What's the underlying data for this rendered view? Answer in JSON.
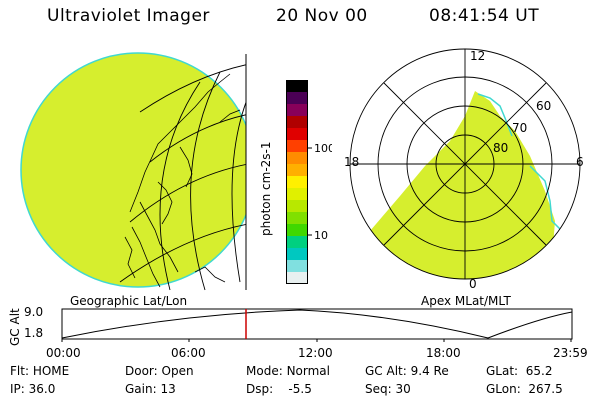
{
  "header": {
    "title": "Ultraviolet Imager",
    "date": "20 Nov 00",
    "time": "08:41:54 UT"
  },
  "colorbar": {
    "label": "photon cm-2s-1",
    "ticks": [
      "100",
      "10"
    ],
    "colors": [
      "#000000",
      "#4b0055",
      "#88005a",
      "#b00000",
      "#e00000",
      "#ff4000",
      "#ff8c00",
      "#ffb000",
      "#fff000",
      "#e0f000",
      "#b8e800",
      "#80e000",
      "#40d800",
      "#00d080",
      "#00c8c0",
      "#80e0e0",
      "#e8f0f0"
    ]
  },
  "polar_plot": {
    "mlt_labels": {
      "top": "12",
      "left": "18",
      "right": "6",
      "bottom": "0"
    },
    "lat_labels": [
      "60",
      "70",
      "80"
    ],
    "fill_color": "#d6ee2e"
  },
  "geo_plot": {
    "fill_color": "#d6ee2e",
    "rim_color": "#40d8d0"
  },
  "timeline": {
    "left_label": "Geographic Lat/Lon",
    "right_label": "Apex MLat/MLT",
    "axis_title": "GC Alt",
    "y_ticks": [
      "9.0",
      "1.8"
    ],
    "x_ticks": [
      "00:00",
      "06:00",
      "12:00",
      "18:00",
      "23:59"
    ],
    "current_marker_time": "08:41:54",
    "marker_color": "#cc0000"
  },
  "status": {
    "row1": [
      {
        "key": "Flt:",
        "value": "HOME"
      },
      {
        "key": "Door:",
        "value": "Open"
      },
      {
        "key": "Mode:",
        "value": "Normal"
      },
      {
        "key": "GC Alt:",
        "value": "9.4 Re"
      },
      {
        "key": "GLat:",
        "value": "65.2"
      }
    ],
    "row2": [
      {
        "key": "IP:",
        "value": "36.0"
      },
      {
        "key": "Gain:",
        "value": "13"
      },
      {
        "key": "Dsp:",
        "value": "-5.5"
      },
      {
        "key": "Seq:",
        "value": "30"
      },
      {
        "key": "GLon:",
        "value": "267.5"
      }
    ]
  }
}
